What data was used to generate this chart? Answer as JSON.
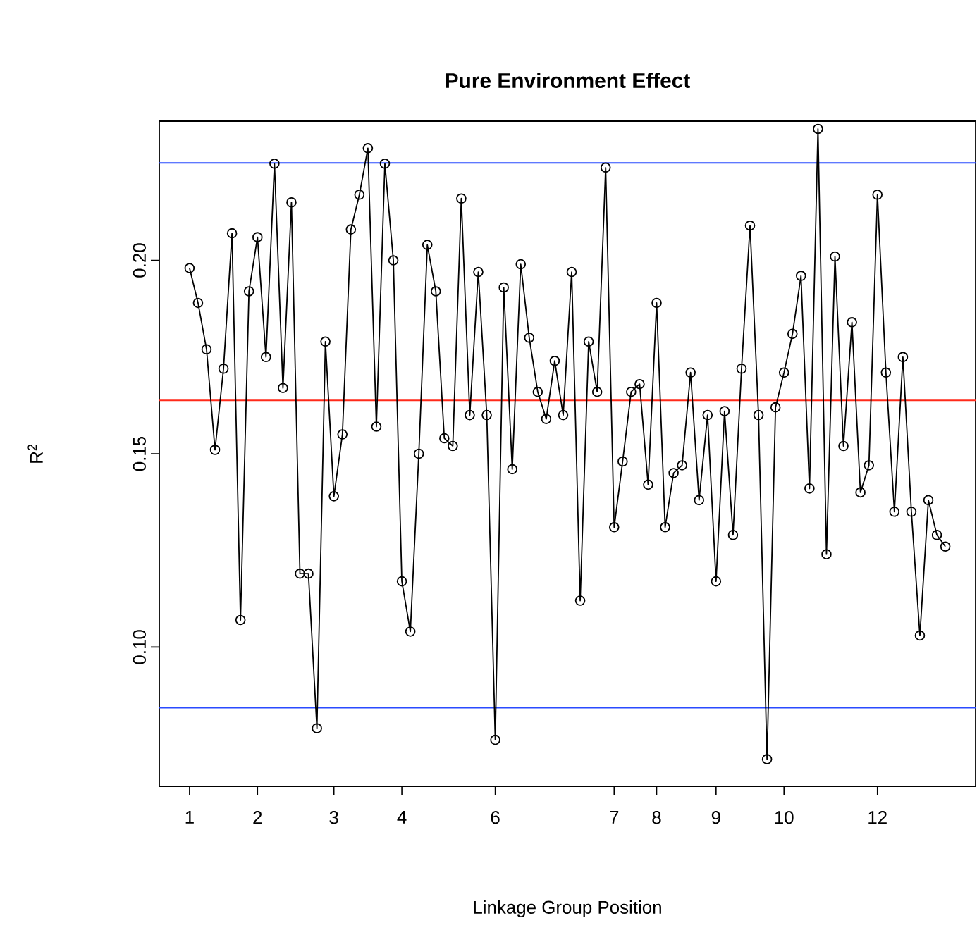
{
  "chart_data": {
    "type": "line",
    "title": "**Pure Environment Effect**",
    "xlabel": "Linkage Group Position",
    "ylabel": "R$^{2}$",
    "categories": [
      "1",
      null,
      null,
      null,
      null,
      null,
      null,
      null,
      "2",
      null,
      null,
      null,
      null,
      null,
      null,
      null,
      null,
      "3",
      null,
      null,
      null,
      null,
      null,
      null,
      null,
      "4",
      null,
      null,
      null,
      null,
      null,
      null,
      null,
      null,
      null,
      null,
      "6",
      null,
      null,
      null,
      null,
      null,
      null,
      null,
      null,
      null,
      null,
      null,
      null,
      null,
      "7",
      null,
      null,
      null,
      null,
      "8",
      null,
      null,
      null,
      null,
      null,
      null,
      "9",
      null,
      null,
      null,
      null,
      null,
      null,
      null,
      "10",
      null,
      null,
      null,
      null,
      null,
      null,
      null,
      null,
      null,
      null,
      "12",
      null,
      null,
      null,
      null,
      null,
      null,
      null,
      null
    ],
    "series": [
      {
        "color": "#000000",
        "values": [
          0.198,
          0.189,
          0.177,
          0.151,
          0.172,
          0.207,
          0.107,
          0.192,
          0.206,
          0.175,
          0.225,
          0.167,
          0.215,
          0.119,
          0.119,
          0.079,
          0.179,
          0.139,
          0.155,
          0.208,
          0.217,
          0.229,
          0.157,
          0.225,
          0.2,
          0.117,
          0.104,
          0.15,
          0.204,
          0.192,
          0.154,
          0.152,
          0.216,
          0.16,
          0.197,
          0.16,
          0.076,
          0.193,
          0.146,
          0.199,
          0.18,
          0.166,
          0.159,
          0.174,
          0.16,
          0.197,
          0.112,
          0.179,
          0.166,
          0.224,
          0.131,
          0.148,
          0.166,
          0.168,
          0.142,
          0.189,
          0.131,
          0.145,
          0.147,
          0.171,
          0.138,
          0.16,
          0.117,
          0.161,
          0.129,
          0.172,
          0.209,
          0.16,
          0.071,
          0.162,
          0.171,
          0.181,
          0.196,
          0.141,
          0.234,
          0.124,
          0.201,
          0.152,
          0.184,
          0.14,
          0.147,
          0.217,
          0.171,
          0.135,
          0.175,
          0.135,
          0.103,
          0.138,
          0.129,
          0.126
        ]
      }
    ],
    "marker": "circle",
    "line_style": "solid",
    "ylim": [
      0.064,
      0.236
    ],
    "yticks": [
      {
        "value": 0.1,
        "label": "0.10"
      },
      {
        "value": 0.15,
        "label": "0.15"
      },
      {
        "value": 0.2,
        "label": "0.20"
      }
    ],
    "ref_lines": [
      {
        "axis": "y",
        "value": 0.2252,
        "color": "#2a4bff"
      },
      {
        "axis": "y",
        "value": 0.0843,
        "color": "#2a4bff"
      },
      {
        "axis": "y",
        "value": 0.1638,
        "color": "#ff2a1a"
      }
    ],
    "grid": false
  }
}
